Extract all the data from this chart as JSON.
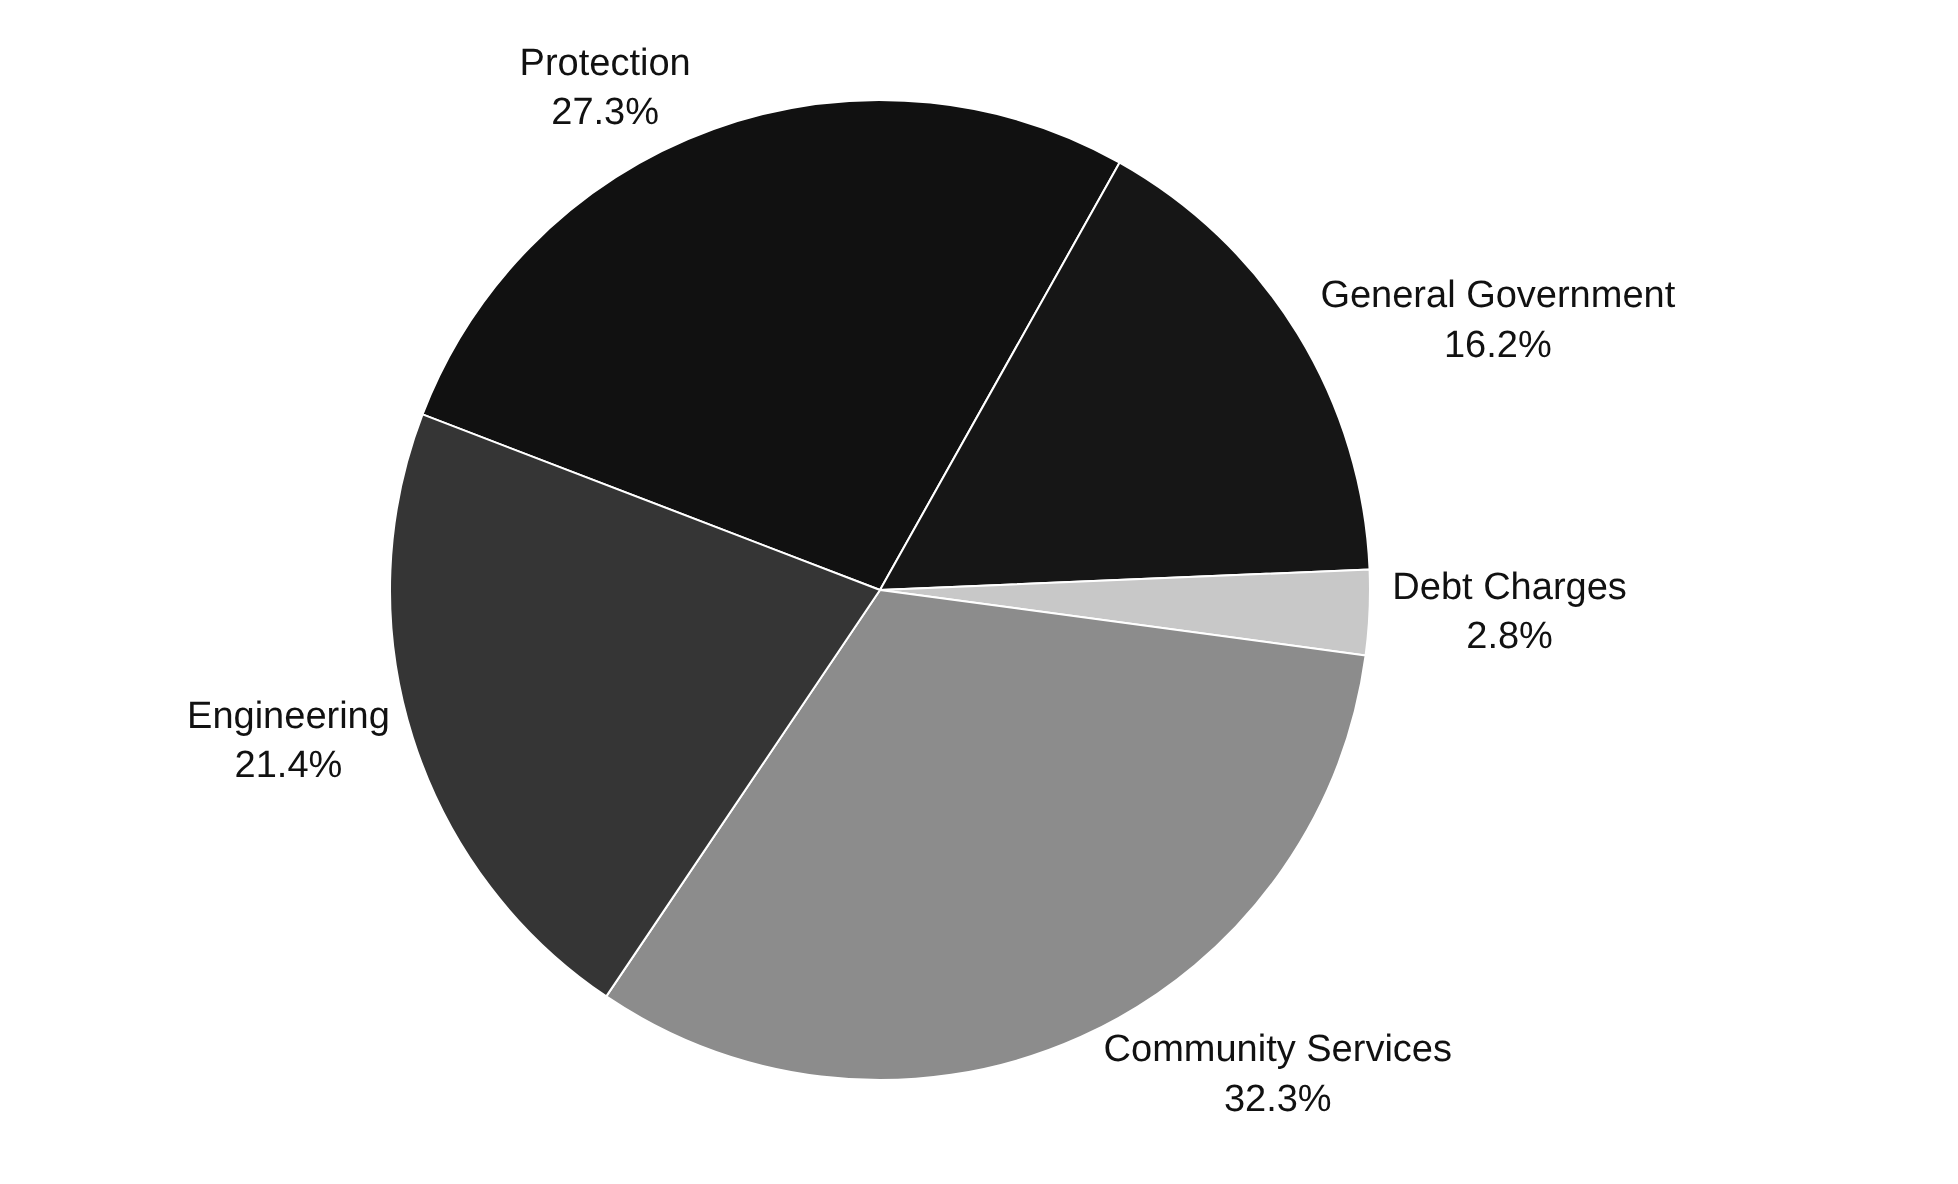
{
  "chart_data": {
    "type": "pie",
    "categories": [
      "Protection",
      "General Government",
      "Debt Charges",
      "Community Services",
      "Engineering"
    ],
    "values": [
      27.3,
      16.2,
      2.8,
      32.3,
      21.4
    ],
    "value_labels": [
      "27.3%",
      "16.2%",
      "2.8%",
      "32.3%",
      "21.4%"
    ],
    "colors": [
      "#111111",
      "#161616",
      "#c8c8c8",
      "#8c8c8c",
      "#353535"
    ],
    "legend": false
  }
}
